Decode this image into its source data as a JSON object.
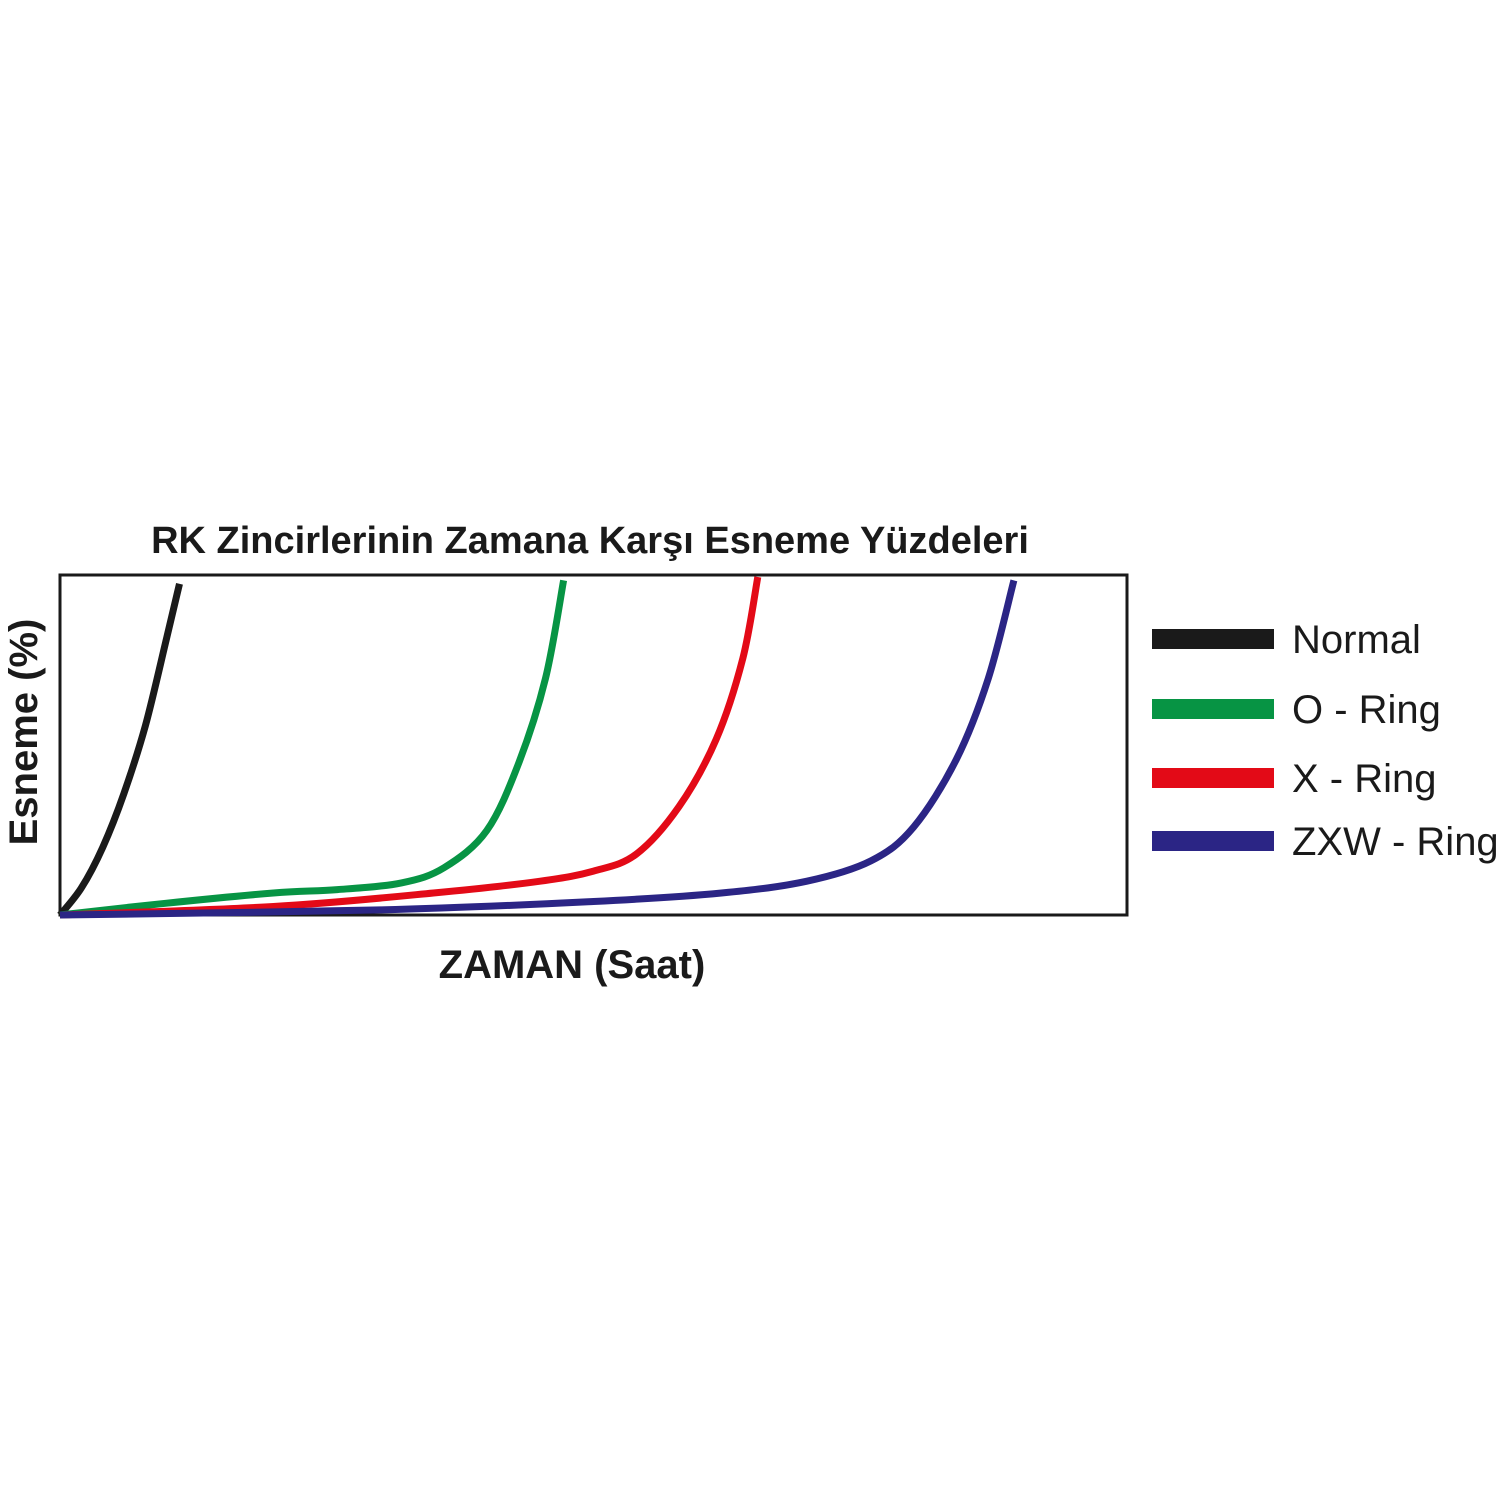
{
  "chart_data": {
    "type": "line",
    "title": "RK Zincirlerinin Zamana Karşı Esneme Yüzdeleri",
    "xlabel": "ZAMAN (Saat)",
    "ylabel": "Esneme (%)",
    "xlim": [
      0,
      100
    ],
    "ylim": [
      0,
      100
    ],
    "grid": false,
    "show_ticks": false,
    "legend_position": "right",
    "series": [
      {
        "name": "Normal",
        "color": "#1a1a1a",
        "x": [
          0,
          2,
          4,
          6,
          8,
          10,
          11.2
        ],
        "y": [
          0,
          8,
          20,
          36,
          56,
          82,
          98
        ]
      },
      {
        "name": "O - Ring",
        "color": "#079444",
        "x": [
          0,
          10,
          20,
          26,
          32,
          36,
          40,
          43,
          45.5,
          47.2
        ],
        "y": [
          0,
          3.5,
          6.5,
          7.5,
          9.5,
          14,
          25,
          45,
          70,
          99
        ]
      },
      {
        "name": "X - Ring",
        "color": "#e30a17",
        "x": [
          0,
          20,
          35,
          45,
          50,
          54,
          58,
          61.5,
          64,
          65.4
        ],
        "y": [
          0,
          2.5,
          6.5,
          10,
          13,
          18,
          32,
          52,
          76,
          100
        ]
      },
      {
        "name": "ZXW - Ring",
        "color": "#2b2585",
        "x": [
          0,
          30,
          50,
          62,
          70,
          76,
          80,
          84,
          87,
          89.4
        ],
        "y": [
          0,
          1.5,
          4,
          6.5,
          10,
          16,
          26,
          46,
          70,
          99
        ]
      }
    ]
  }
}
